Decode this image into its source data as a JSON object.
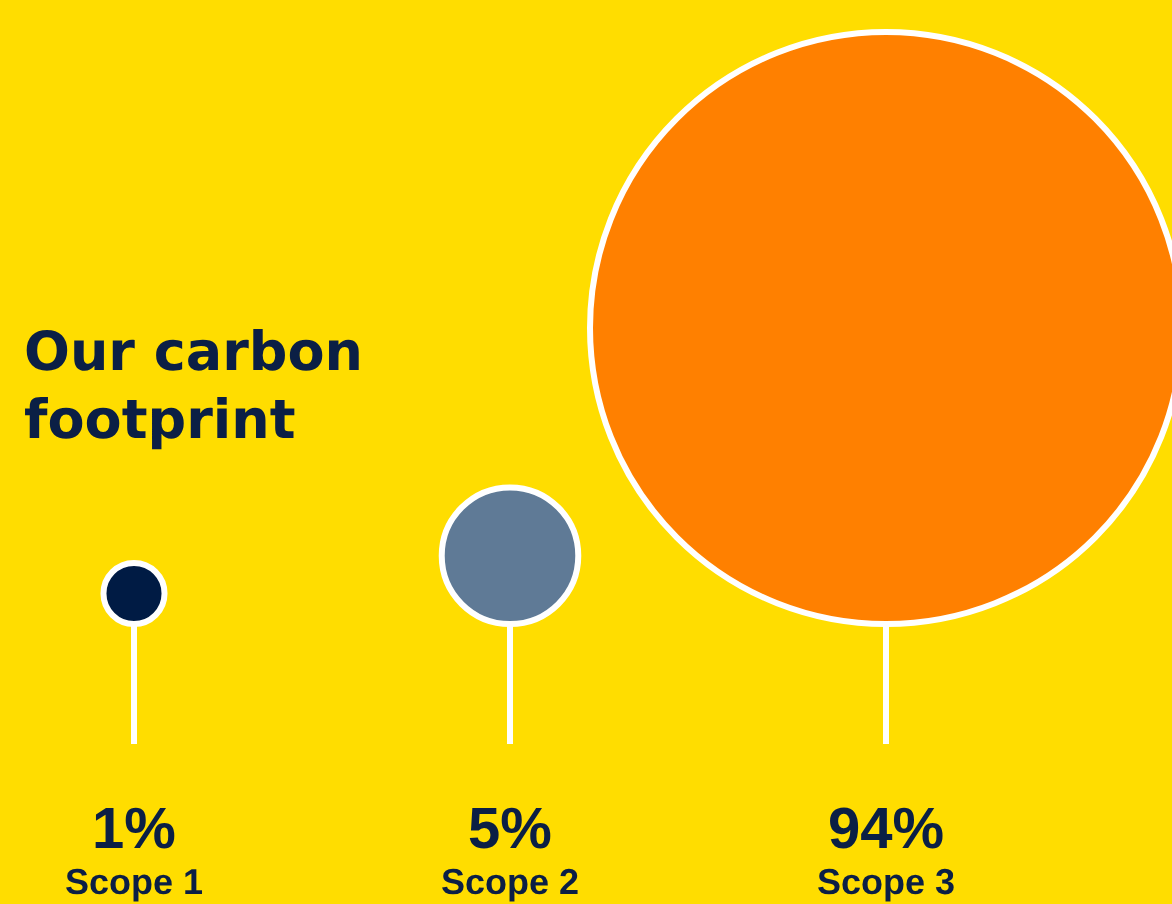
{
  "chart_data": {
    "type": "other",
    "title": "Our carbon footprint",
    "categories": [
      "Scope 1",
      "Scope 2",
      "Scope 3"
    ],
    "values": [
      1,
      5,
      94
    ],
    "colors": [
      "#001b44",
      "#5f7a96",
      "#ff8000"
    ],
    "value_labels": [
      "1%",
      "5%",
      "94%"
    ]
  }
}
